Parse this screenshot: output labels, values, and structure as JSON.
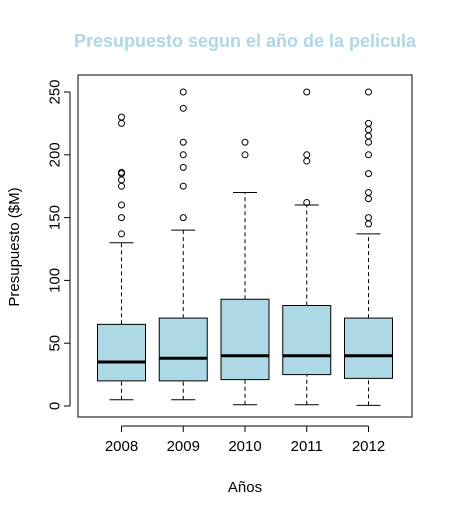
{
  "chart_data": {
    "type": "boxplot",
    "title": "Presupuesto segun el año de la pelicula",
    "xlabel": "Años",
    "ylabel": "Presupuesto ($M)",
    "categories": [
      "2008",
      "2009",
      "2010",
      "2011",
      "2012"
    ],
    "ylim": [
      0,
      250
    ],
    "yticks": [
      0,
      50,
      100,
      150,
      200,
      250
    ],
    "grid": false,
    "box_fill": "#add8e6",
    "title_color": "#add8e6",
    "boxes": [
      {
        "category": "2008",
        "whisker_low": 5,
        "q1": 20,
        "median": 35,
        "q3": 65,
        "whisker_high": 130,
        "outliers": [
          137,
          150,
          160,
          175,
          180,
          185,
          186,
          225,
          230
        ]
      },
      {
        "category": "2009",
        "whisker_low": 5,
        "q1": 20,
        "median": 38,
        "q3": 70,
        "whisker_high": 140,
        "outliers": [
          150,
          175,
          190,
          200,
          210,
          237,
          250
        ]
      },
      {
        "category": "2010",
        "whisker_low": 1,
        "q1": 21,
        "median": 40,
        "q3": 85,
        "whisker_high": 170,
        "outliers": [
          200,
          210
        ]
      },
      {
        "category": "2011",
        "whisker_low": 1,
        "q1": 25,
        "median": 40,
        "q3": 80,
        "whisker_high": 160,
        "outliers": [
          162,
          195,
          200,
          250
        ]
      },
      {
        "category": "2012",
        "whisker_low": 0.5,
        "q1": 22,
        "median": 40,
        "q3": 70,
        "whisker_high": 137,
        "outliers": [
          145,
          150,
          165,
          170,
          185,
          200,
          210,
          215,
          220,
          225,
          250
        ]
      }
    ]
  }
}
